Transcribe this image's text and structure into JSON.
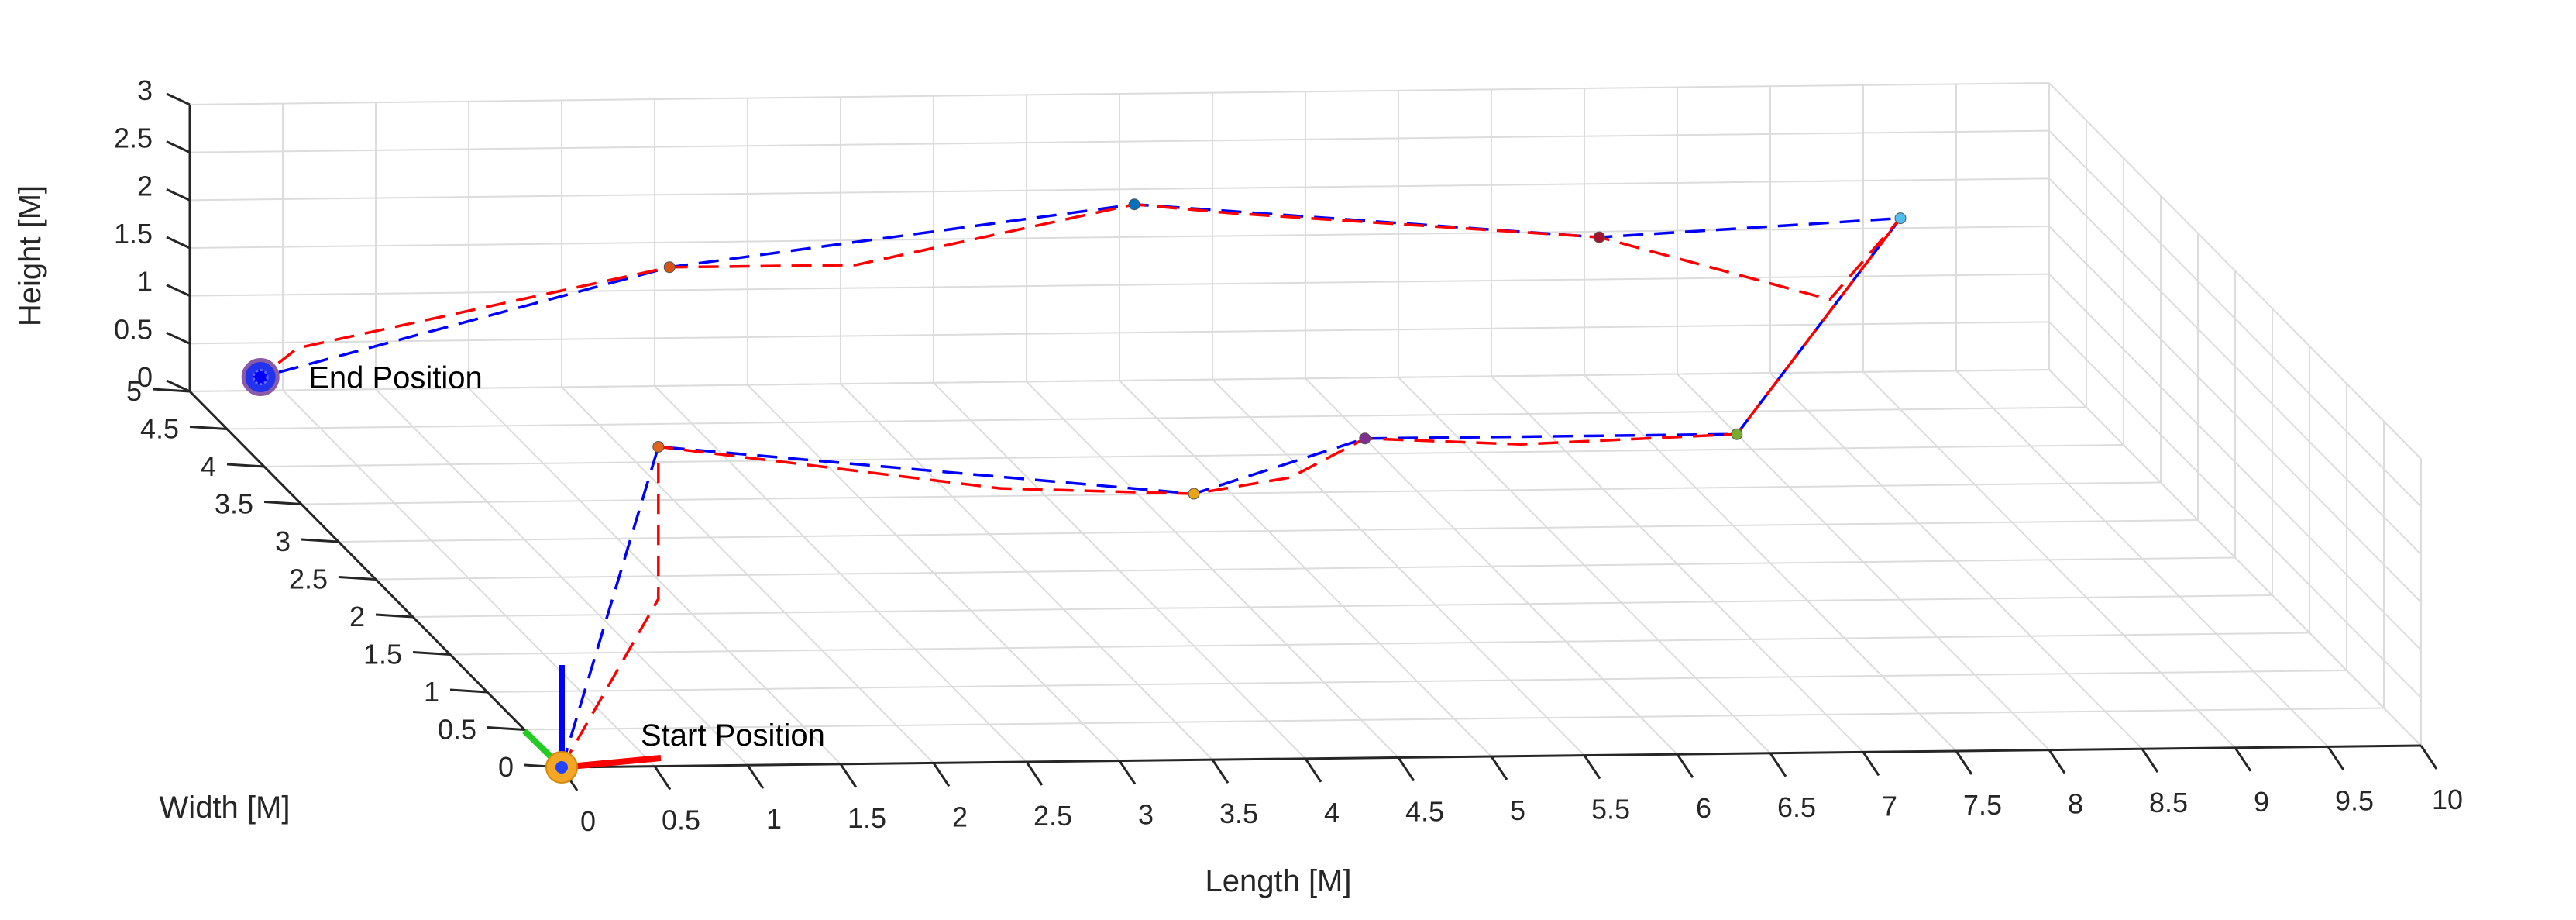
{
  "chart_data": {
    "type": "line3d",
    "title": "",
    "xlabel": "Length [M]",
    "ylabel": "Width [M]",
    "zlabel": "Height [M]",
    "xlim": [
      0,
      10
    ],
    "ylim": [
      0,
      5
    ],
    "zlim": [
      0,
      3
    ],
    "xticks": [
      "0",
      "0.5",
      "1",
      "1.5",
      "2",
      "2.5",
      "3",
      "3.5",
      "4",
      "4.5",
      "5",
      "5.5",
      "6",
      "6.5",
      "7",
      "7.5",
      "8",
      "8.5",
      "9",
      "9.5",
      "10"
    ],
    "yticks": [
      "0",
      "0.5",
      "1",
      "1.5",
      "2",
      "2.5",
      "3",
      "3.5",
      "4",
      "4.5",
      "5"
    ],
    "zticks": [
      "0",
      "0.5",
      "1",
      "1.5",
      "2",
      "2.5",
      "3"
    ],
    "grid": true,
    "series": [
      {
        "style": "dashed",
        "color": "#0000ff",
        "x": [
          0,
          2.2,
          4.8,
          6.0,
          8.0,
          9.0,
          7.5,
          5.0,
          2.5,
          0.3
        ],
        "y": [
          0,
          4.2,
          3.5,
          4.2,
          4.2,
          4.5,
          4.8,
          4.8,
          4.8,
          4.8
        ],
        "z": [
          0,
          0,
          0,
          0,
          0,
          2.0,
          1.6,
          2.0,
          1.4,
          0.3
        ]
      },
      {
        "style": "dashed",
        "color": "#ff0000",
        "x": [
          0,
          1.4,
          2.2,
          3.8,
          4.8,
          5.4,
          6.0,
          6.8,
          8.0,
          9.0,
          8.7,
          7.5,
          5.5,
          5.0,
          3.5,
          2.5,
          0.5,
          0.3
        ],
        "y": [
          0,
          2.2,
          4.2,
          3.6,
          3.5,
          3.7,
          4.2,
          4.1,
          4.2,
          4.5,
          4.7,
          4.8,
          4.8,
          4.8,
          4.8,
          4.8,
          4.8,
          4.8
        ],
        "z": [
          0,
          0,
          0,
          0,
          0,
          0,
          0,
          0,
          0,
          2.0,
          1.0,
          1.6,
          1.9,
          2.0,
          1.4,
          1.4,
          0.6,
          0.3
        ]
      }
    ],
    "waypoints": [
      {
        "x": 2.2,
        "y": 4.2,
        "z": 0,
        "color": "#e0651b"
      },
      {
        "x": 4.8,
        "y": 3.5,
        "z": 0,
        "color": "#e8a317"
      },
      {
        "x": 6.0,
        "y": 4.2,
        "z": 0,
        "color": "#7e2f8e"
      },
      {
        "x": 8.0,
        "y": 4.2,
        "z": 0,
        "color": "#77ac30"
      },
      {
        "x": 9.0,
        "y": 4.5,
        "z": 2.0,
        "color": "#4dbeee"
      },
      {
        "x": 7.5,
        "y": 4.8,
        "z": 1.6,
        "color": "#a2142f"
      },
      {
        "x": 5.0,
        "y": 4.8,
        "z": 2.0,
        "color": "#0072bd"
      },
      {
        "x": 2.5,
        "y": 4.8,
        "z": 1.4,
        "color": "#d95319"
      }
    ],
    "annotations": [
      {
        "text": "Start Position",
        "x": 0,
        "y": 0,
        "z": 0
      },
      {
        "text": "End Position",
        "x": 0.3,
        "y": 4.8,
        "z": 0.3
      }
    ]
  }
}
